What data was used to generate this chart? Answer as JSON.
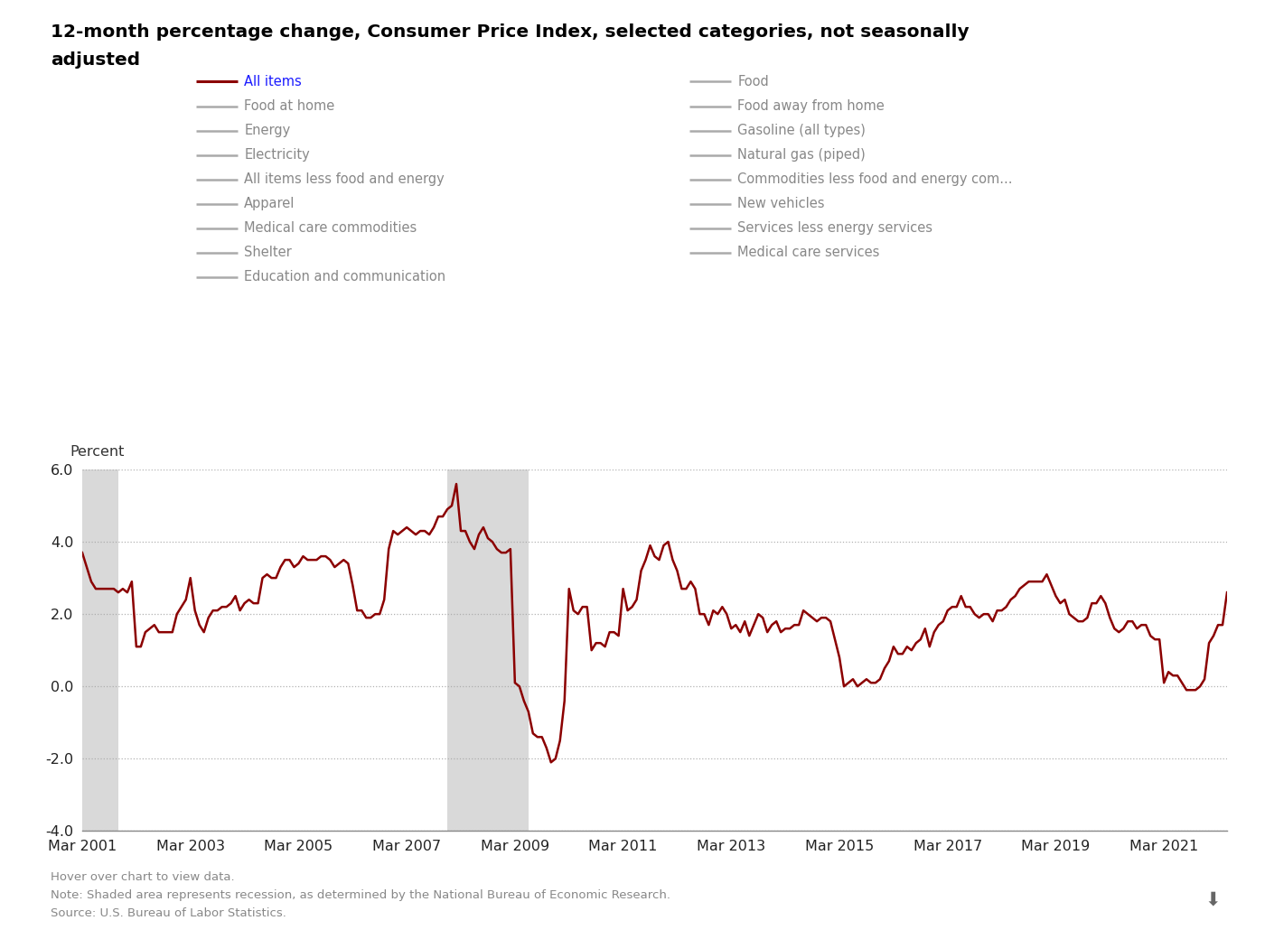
{
  "title_line1": "12-month percentage change, Consumer Price Index, selected categories, not seasonally",
  "title_line2": "adjusted",
  "ylabel": "Percent",
  "ylim": [
    -4.0,
    6.0
  ],
  "yticks": [
    -4.0,
    -2.0,
    0.0,
    2.0,
    4.0,
    6.0
  ],
  "line_color": "#8B0000",
  "line_width": 1.8,
  "background_color": "#ffffff",
  "grid_color": "#aaaaaa",
  "recession_color": "#d3d3d3",
  "recession_alpha": 0.85,
  "xtick_labels": [
    "Mar 2001",
    "Mar 2003",
    "Mar 2005",
    "Mar 2007",
    "Mar 2009",
    "Mar 2011",
    "Mar 2013",
    "Mar 2015",
    "Mar 2017",
    "Mar 2019",
    "Mar 2021"
  ],
  "xtick_positions": [
    0,
    24,
    48,
    72,
    96,
    120,
    144,
    168,
    192,
    216,
    240
  ],
  "legend_left_items": [
    {
      "label": "All items",
      "color": "#8B0000",
      "is_allitems": true
    },
    {
      "label": "Food at home",
      "color": "#aaaaaa",
      "is_allitems": false
    },
    {
      "label": "Energy",
      "color": "#aaaaaa",
      "is_allitems": false
    },
    {
      "label": "Electricity",
      "color": "#aaaaaa",
      "is_allitems": false
    },
    {
      "label": "All items less food and energy",
      "color": "#aaaaaa",
      "is_allitems": false
    },
    {
      "label": "Apparel",
      "color": "#aaaaaa",
      "is_allitems": false
    },
    {
      "label": "Medical care commodities",
      "color": "#aaaaaa",
      "is_allitems": false
    },
    {
      "label": "Shelter",
      "color": "#aaaaaa",
      "is_allitems": false
    },
    {
      "label": "Education and communication",
      "color": "#aaaaaa",
      "is_allitems": false
    }
  ],
  "legend_right_items": [
    {
      "label": "Food",
      "color": "#aaaaaa"
    },
    {
      "label": "Food away from home",
      "color": "#aaaaaa"
    },
    {
      "label": "Gasoline (all types)",
      "color": "#aaaaaa"
    },
    {
      "label": "Natural gas (piped)",
      "color": "#aaaaaa"
    },
    {
      "label": "Commodities less food and energy com...",
      "color": "#aaaaaa"
    },
    {
      "label": "New vehicles",
      "color": "#aaaaaa"
    },
    {
      "label": "Services less energy services",
      "color": "#aaaaaa"
    },
    {
      "label": "Medical care services",
      "color": "#aaaaaa"
    }
  ],
  "footnote1": "Hover over chart to view data.",
  "footnote2": "Note: Shaded area represents recession, as determined by the National Bureau of Economic Research.",
  "footnote3": "Source: U.S. Bureau of Labor Statistics.",
  "recession1_start": 0,
  "recession1_end": 8,
  "recession2_start": 81,
  "recession2_end": 99,
  "all_items_data": [
    3.7,
    3.3,
    2.9,
    2.7,
    2.7,
    2.7,
    2.7,
    2.7,
    2.6,
    2.7,
    2.6,
    2.9,
    1.1,
    1.1,
    1.5,
    1.6,
    1.7,
    1.5,
    1.5,
    1.5,
    1.5,
    2.0,
    2.2,
    2.4,
    3.0,
    2.1,
    1.7,
    1.5,
    1.9,
    2.1,
    2.1,
    2.2,
    2.2,
    2.3,
    2.5,
    2.1,
    2.3,
    2.4,
    2.3,
    2.3,
    3.0,
    3.1,
    3.0,
    3.0,
    3.3,
    3.5,
    3.5,
    3.3,
    3.4,
    3.6,
    3.5,
    3.5,
    3.5,
    3.6,
    3.6,
    3.5,
    3.3,
    3.4,
    3.5,
    3.4,
    2.8,
    2.1,
    2.1,
    1.9,
    1.9,
    2.0,
    2.0,
    2.4,
    3.8,
    4.3,
    4.2,
    4.3,
    4.4,
    4.3,
    4.2,
    4.3,
    4.3,
    4.2,
    4.4,
    4.7,
    4.7,
    4.9,
    5.0,
    5.6,
    4.3,
    4.3,
    4.0,
    3.8,
    4.2,
    4.4,
    4.1,
    4.0,
    3.8,
    3.7,
    3.7,
    3.8,
    0.1,
    0.0,
    -0.4,
    -0.7,
    -1.3,
    -1.4,
    -1.4,
    -1.7,
    -2.1,
    -2.0,
    -1.5,
    -0.4,
    2.7,
    2.1,
    2.0,
    2.2,
    2.2,
    1.0,
    1.2,
    1.2,
    1.1,
    1.5,
    1.5,
    1.4,
    2.7,
    2.1,
    2.2,
    2.4,
    3.2,
    3.5,
    3.9,
    3.6,
    3.5,
    3.9,
    4.0,
    3.5,
    3.2,
    2.7,
    2.7,
    2.9,
    2.7,
    2.0,
    2.0,
    1.7,
    2.1,
    2.0,
    2.2,
    2.0,
    1.6,
    1.7,
    1.5,
    1.8,
    1.4,
    1.7,
    2.0,
    1.9,
    1.5,
    1.7,
    1.8,
    1.5,
    1.6,
    1.6,
    1.7,
    1.7,
    2.1,
    2.0,
    1.9,
    1.8,
    1.9,
    1.9,
    1.8,
    1.3,
    0.8,
    0.0,
    0.1,
    0.2,
    0.0,
    0.1,
    0.2,
    0.1,
    0.1,
    0.2,
    0.5,
    0.7,
    1.1,
    0.9,
    0.9,
    1.1,
    1.0,
    1.2,
    1.3,
    1.6,
    1.1,
    1.5,
    1.7,
    1.8,
    2.1,
    2.2,
    2.2,
    2.5,
    2.2,
    2.2,
    2.0,
    1.9,
    2.0,
    2.0,
    1.8,
    2.1,
    2.1,
    2.2,
    2.4,
    2.5,
    2.7,
    2.8,
    2.9,
    2.9,
    2.9,
    2.9,
    3.1,
    2.8,
    2.5,
    2.3,
    2.4,
    2.0,
    1.9,
    1.8,
    1.8,
    1.9,
    2.3,
    2.3,
    2.5,
    2.3,
    1.9,
    1.6,
    1.5,
    1.6,
    1.8,
    1.8,
    1.6,
    1.7,
    1.7,
    1.4,
    1.3,
    1.3,
    0.1,
    0.4,
    0.3,
    0.3,
    0.1,
    -0.1,
    -0.1,
    -0.1,
    0.0,
    0.2,
    1.2,
    1.4,
    1.7,
    1.7,
    2.6
  ]
}
